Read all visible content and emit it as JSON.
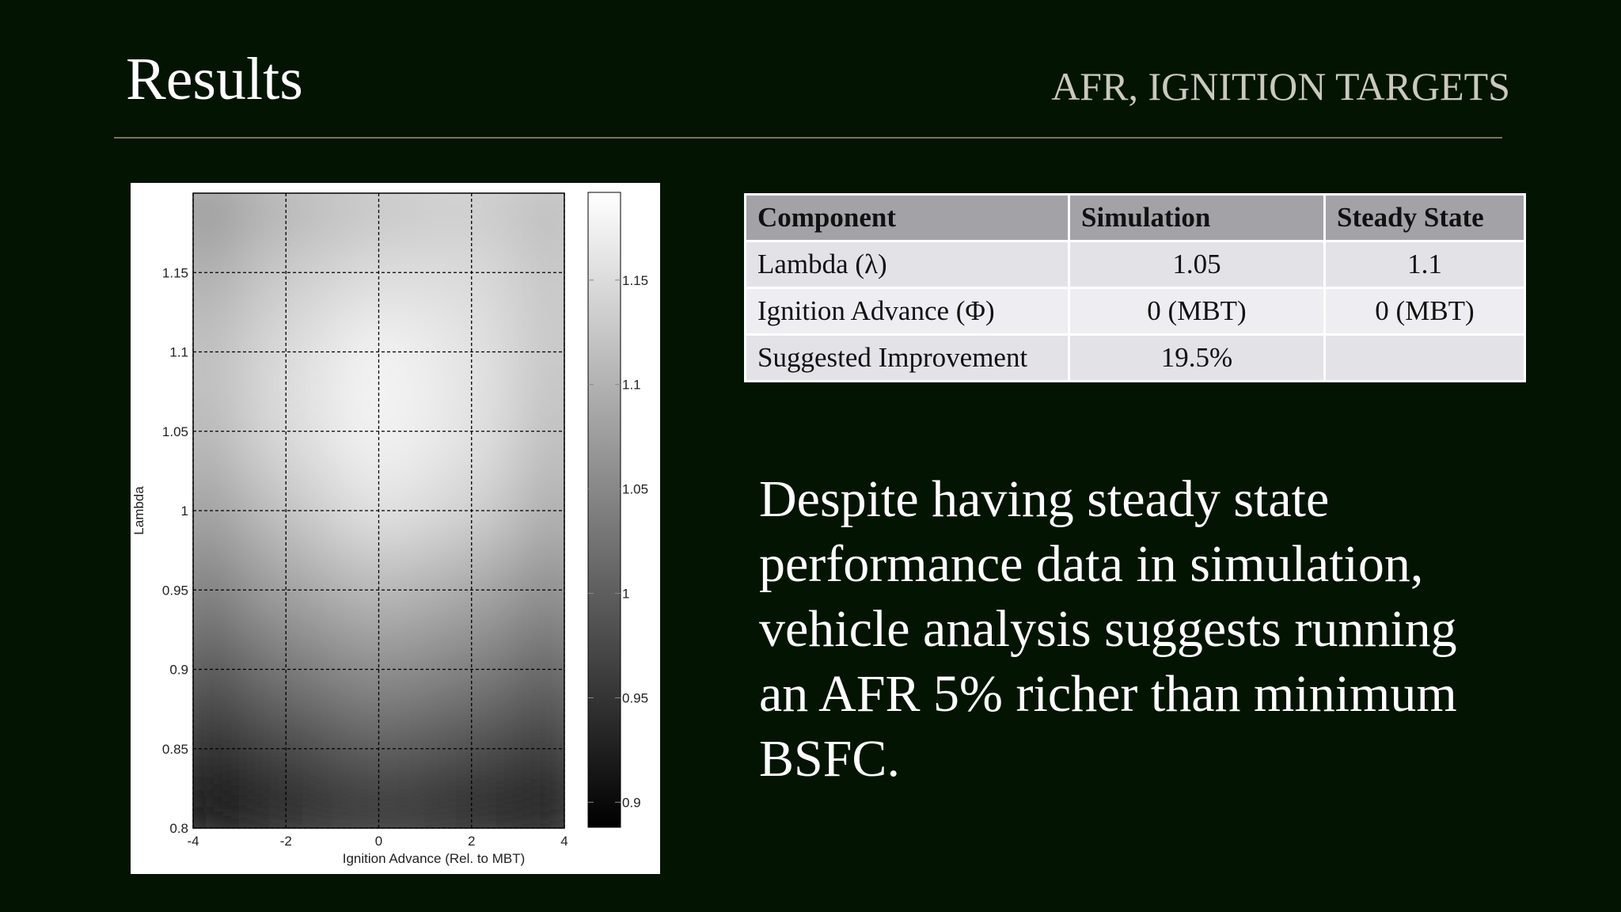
{
  "header": {
    "title": "Results",
    "subtitle": "AFR, IGNITION TARGETS"
  },
  "chart_data": {
    "type": "heatmap",
    "xlabel": "Ignition Advance (Rel. to MBT)",
    "ylabel": "Lambda",
    "x": [
      -4,
      -2,
      0,
      2,
      4
    ],
    "y": [
      0.8,
      0.85,
      0.9,
      0.95,
      1,
      1.05,
      1.1,
      1.15,
      1.2
    ],
    "z": [
      [
        0.89,
        0.92,
        0.94,
        0.92,
        0.9
      ],
      [
        0.93,
        0.97,
        1.0,
        0.98,
        0.95
      ],
      [
        0.98,
        1.03,
        1.06,
        1.04,
        1.0
      ],
      [
        1.03,
        1.08,
        1.11,
        1.09,
        1.05
      ],
      [
        1.07,
        1.12,
        1.16,
        1.14,
        1.09
      ],
      [
        1.1,
        1.15,
        1.18,
        1.16,
        1.11
      ],
      [
        1.11,
        1.15,
        1.18,
        1.16,
        1.12
      ],
      [
        1.09,
        1.13,
        1.15,
        1.15,
        1.12
      ],
      [
        1.06,
        1.1,
        1.12,
        1.13,
        1.11
      ]
    ],
    "xlim": [
      -4,
      4
    ],
    "xticks": [
      -4,
      -2,
      0,
      2,
      4
    ],
    "ylim": [
      0.8,
      1.2
    ],
    "yticks": [
      0.8,
      0.85,
      0.9,
      0.95,
      1,
      1.05,
      1.1,
      1.15
    ],
    "clim": [
      0.888,
      1.192
    ],
    "cticks": [
      0.9,
      0.95,
      1,
      1.05,
      1.1,
      1.15
    ],
    "colormap": "gray",
    "grid": true
  },
  "table": {
    "header": [
      "Component",
      "Simulation",
      "Steady State"
    ],
    "rows": [
      [
        "Lambda (λ)",
        "1.05",
        "1.1"
      ],
      [
        "Ignition Advance (Φ)",
        "0 (MBT)",
        "0 (MBT)"
      ],
      [
        "Suggested Improvement",
        "19.5%",
        null
      ]
    ]
  },
  "body": {
    "text": "Despite having steady state performance data in simulation, vehicle analysis suggests running an AFR 5% richer than minimum BSFC."
  }
}
